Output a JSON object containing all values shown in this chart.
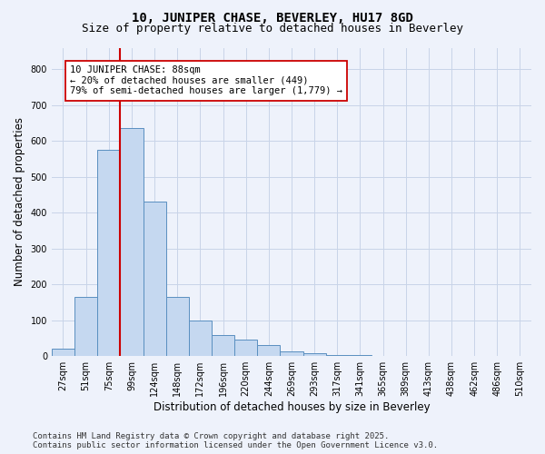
{
  "title_line1": "10, JUNIPER CHASE, BEVERLEY, HU17 8GD",
  "title_line2": "Size of property relative to detached houses in Beverley",
  "xlabel": "Distribution of detached houses by size in Beverley",
  "ylabel": "Number of detached properties",
  "categories": [
    "27sqm",
    "51sqm",
    "75sqm",
    "99sqm",
    "124sqm",
    "148sqm",
    "172sqm",
    "196sqm",
    "220sqm",
    "244sqm",
    "269sqm",
    "293sqm",
    "317sqm",
    "341sqm",
    "365sqm",
    "389sqm",
    "413sqm",
    "438sqm",
    "462sqm",
    "486sqm",
    "510sqm"
  ],
  "values": [
    22,
    165,
    575,
    635,
    430,
    165,
    100,
    60,
    45,
    30,
    12,
    7,
    4,
    2,
    1,
    0,
    0,
    0,
    0,
    0,
    0
  ],
  "bar_color": "#c5d8f0",
  "bar_edge_color": "#5a8fc0",
  "vline_color": "#cc0000",
  "vline_x_index": 2,
  "annotation_text": "10 JUNIPER CHASE: 88sqm\n← 20% of detached houses are smaller (449)\n79% of semi-detached houses are larger (1,779) →",
  "annotation_box_color": "white",
  "annotation_box_edge": "#cc0000",
  "ylim": [
    0,
    860
  ],
  "yticks": [
    0,
    100,
    200,
    300,
    400,
    500,
    600,
    700,
    800
  ],
  "bg_color": "#eef2fb",
  "grid_color": "#c8d4e8",
  "footer_line1": "Contains HM Land Registry data © Crown copyright and database right 2025.",
  "footer_line2": "Contains public sector information licensed under the Open Government Licence v3.0.",
  "title_fontsize": 10,
  "subtitle_fontsize": 9,
  "axis_label_fontsize": 8.5,
  "tick_fontsize": 7,
  "annotation_fontsize": 7.5,
  "footer_fontsize": 6.5
}
